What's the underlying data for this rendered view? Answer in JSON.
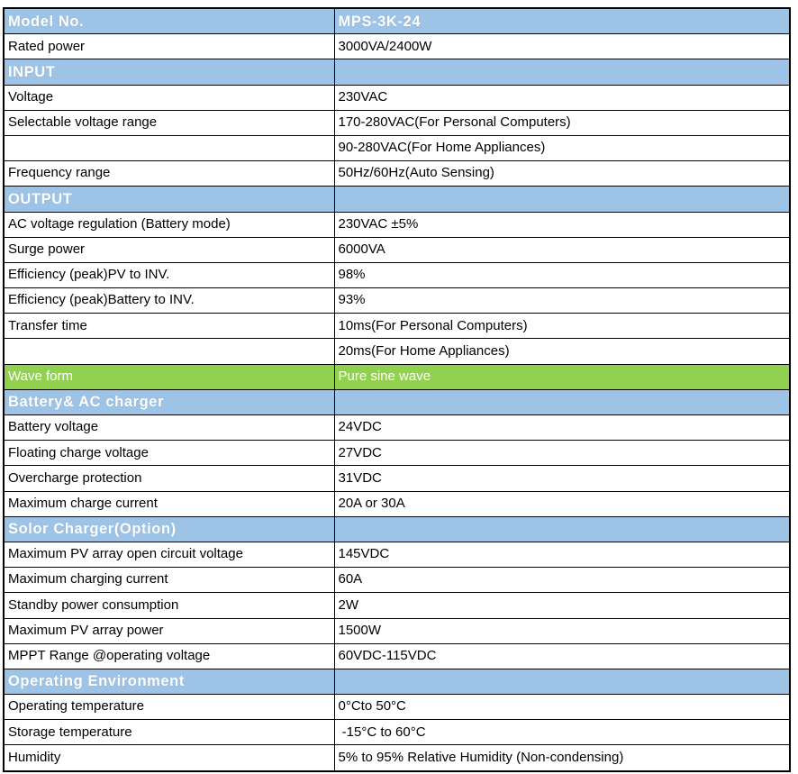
{
  "colors": {
    "section_header_bg": "#9DC3E6",
    "section_header_text": "#FFFFFF",
    "highlight_row_bg": "#92D050",
    "highlight_row_text": "#FFFFFF",
    "body_text": "#000000",
    "grid_border": "#000000",
    "page_bg": "#FFFFFF"
  },
  "table": {
    "rows": [
      {
        "type": "header",
        "label": "Model No.",
        "value": "MPS-3K-24"
      },
      {
        "type": "data",
        "label": "Rated power",
        "value": "3000VA/2400W"
      },
      {
        "type": "header",
        "label": "INPUT",
        "value": ""
      },
      {
        "type": "data",
        "label": "Voltage",
        "value": "230VAC"
      },
      {
        "type": "data",
        "label": "Selectable voltage range",
        "value": "170-280VAC(For Personal Computers)"
      },
      {
        "type": "data",
        "label": "",
        "value": "90-280VAC(For Home Appliances)"
      },
      {
        "type": "data",
        "label": "Frequency range",
        "value": "50Hz/60Hz(Auto Sensing)"
      },
      {
        "type": "header",
        "label": "OUTPUT",
        "value": ""
      },
      {
        "type": "data",
        "label": "AC voltage regulation (Battery mode)",
        "value": "230VAC ±5%"
      },
      {
        "type": "data",
        "label": "Surge power",
        "value": "6000VA"
      },
      {
        "type": "data",
        "label": "Efficiency (peak)PV to INV.",
        "value": "98%"
      },
      {
        "type": "data",
        "label": "Efficiency (peak)Battery to INV.",
        "value": "93%"
      },
      {
        "type": "data",
        "label": "Transfer time",
        "value": "10ms(For Personal Computers)"
      },
      {
        "type": "data",
        "label": "",
        "value": "20ms(For Home Appliances)"
      },
      {
        "type": "highlight",
        "label": "Wave form",
        "value": "Pure sine wave"
      },
      {
        "type": "header",
        "label": "Battery& AC charger",
        "value": ""
      },
      {
        "type": "data",
        "label": "Battery voltage",
        "value": "24VDC"
      },
      {
        "type": "data",
        "label": "Floating charge voltage",
        "value": "27VDC"
      },
      {
        "type": "data",
        "label": "Overcharge protection",
        "value": "31VDC"
      },
      {
        "type": "data",
        "label": "Maximum charge current",
        "value": "20A or 30A"
      },
      {
        "type": "header",
        "label": "Solor Charger(Option)",
        "value": ""
      },
      {
        "type": "data",
        "label": "Maximum PV array open circuit voltage",
        "value": "145VDC"
      },
      {
        "type": "data",
        "label": "Maximum charging current",
        "value": "60A"
      },
      {
        "type": "data",
        "label": "Standby power consumption",
        "value": "2W"
      },
      {
        "type": "data",
        "label": "Maximum PV array power",
        "value": "1500W"
      },
      {
        "type": "data",
        "label": "MPPT Range @operating voltage",
        "value": "60VDC-115VDC"
      },
      {
        "type": "header",
        "label": "Operating Environment",
        "value": ""
      },
      {
        "type": "data",
        "label": "Operating temperature",
        "value": "0°Cto 50°C"
      },
      {
        "type": "data",
        "label": "Storage temperature",
        "value": " -15°C to 60°C"
      },
      {
        "type": "data",
        "label": "Humidity",
        "value": "5% to 95% Relative Humidity (Non-condensing)"
      }
    ]
  }
}
